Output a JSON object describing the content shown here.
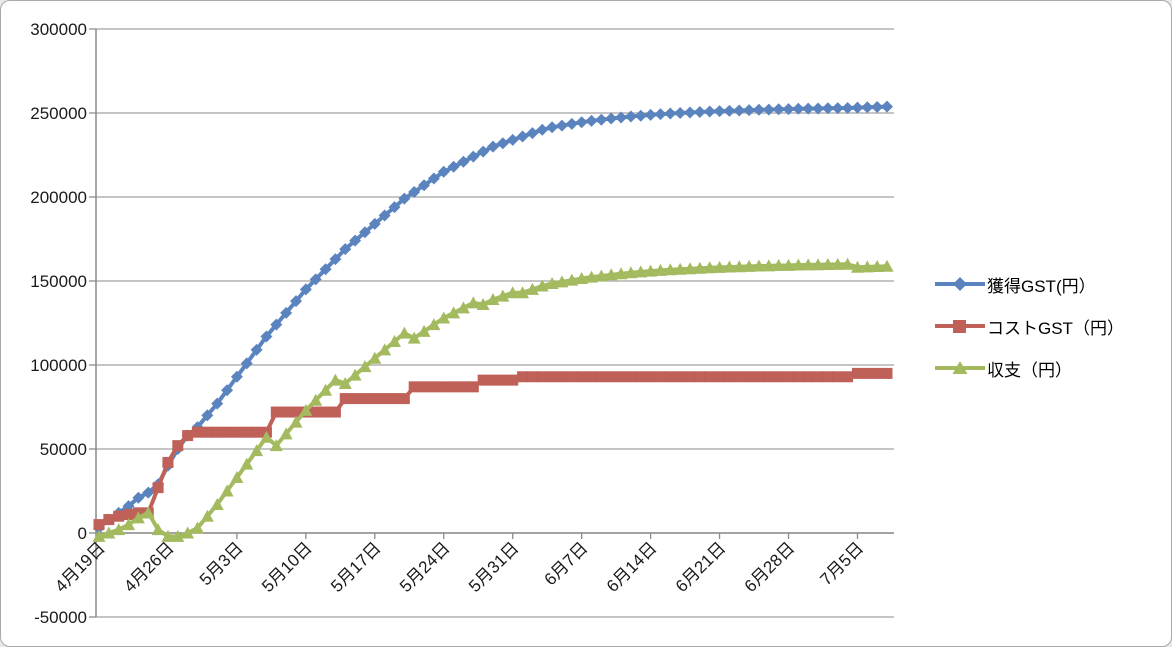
{
  "chart": {
    "title": "",
    "legend": {
      "position": "right",
      "items": [
        {
          "label": "獲得GST(円）",
          "color": "#5b84bf",
          "marker": "diamond"
        },
        {
          "label": "コストGST（円）",
          "color": "#bf6158",
          "marker": "square"
        },
        {
          "label": "収支（円）",
          "color": "#a3ba5f",
          "marker": "triangle"
        }
      ]
    }
  },
  "chart_data": {
    "type": "line",
    "title": "",
    "xlabel": "",
    "ylabel": "",
    "grid": true,
    "legend_position": "right",
    "ylim": [
      -50000,
      300000
    ],
    "y_tick_step": 50000,
    "y_tick_labels": [
      "300000",
      "250000",
      "200000",
      "150000",
      "100000",
      "50000",
      "0",
      "-50000"
    ],
    "x_tick_labels": [
      "4月19日",
      "4月26日",
      "5月3日",
      "5月10日",
      "5月17日",
      "5月24日",
      "5月31日",
      "6月7日",
      "6月14日",
      "6月21日",
      "6月28日",
      "7月5日"
    ],
    "x_tick_indices": [
      0,
      7,
      14,
      21,
      28,
      35,
      42,
      49,
      56,
      63,
      70,
      77
    ],
    "x_unit": "day",
    "n_points": 81,
    "series": [
      {
        "name": "獲得GST(円）",
        "marker": "diamond",
        "color": "#5b84bf",
        "values": [
          3000,
          8000,
          12000,
          16000,
          21000,
          24000,
          29000,
          40000,
          50000,
          58000,
          63000,
          70000,
          77000,
          85000,
          93000,
          101000,
          109000,
          117000,
          124000,
          131000,
          138000,
          145000,
          151000,
          157000,
          163000,
          169000,
          174000,
          179000,
          184000,
          189000,
          194000,
          199000,
          203000,
          207000,
          211000,
          215000,
          218000,
          221000,
          224000,
          227000,
          230000,
          232000,
          234000,
          236000,
          238000,
          240000,
          241500,
          242500,
          243500,
          244500,
          245300,
          246000,
          246700,
          247300,
          247900,
          248400,
          248900,
          249300,
          249700,
          250000,
          250300,
          250600,
          250900,
          251100,
          251300,
          251500,
          251700,
          251900,
          252000,
          252200,
          252300,
          252500,
          252600,
          252700,
          252800,
          252900,
          253000,
          253200,
          253400,
          253600,
          253800
        ]
      },
      {
        "name": "コストGST（円）",
        "marker": "square",
        "color": "#bf6158",
        "values": [
          5000,
          8000,
          10000,
          11000,
          12000,
          12000,
          27000,
          42000,
          52000,
          58000,
          60000,
          60000,
          60000,
          60000,
          60000,
          60000,
          60000,
          60000,
          72000,
          72000,
          72000,
          72000,
          72000,
          72000,
          72000,
          80000,
          80000,
          80000,
          80000,
          80000,
          80000,
          80000,
          87000,
          87000,
          87000,
          87000,
          87000,
          87000,
          87000,
          91000,
          91000,
          91000,
          91000,
          93000,
          93000,
          93000,
          93000,
          93000,
          93000,
          93000,
          93000,
          93000,
          93000,
          93000,
          93000,
          93000,
          93000,
          93000,
          93000,
          93000,
          93000,
          93000,
          93000,
          93000,
          93000,
          93000,
          93000,
          93000,
          93000,
          93000,
          93000,
          93000,
          93000,
          93000,
          93000,
          93000,
          93000,
          95000,
          95000,
          95000,
          95000
        ]
      },
      {
        "name": "収支（円）",
        "marker": "triangle",
        "color": "#a3ba5f",
        "values": [
          -2000,
          0,
          2000,
          5000,
          9000,
          12000,
          2000,
          -2000,
          -2000,
          0,
          3000,
          10000,
          17000,
          25000,
          33000,
          41000,
          49000,
          57000,
          52000,
          59000,
          66000,
          73000,
          79000,
          85000,
          91000,
          89000,
          94000,
          99000,
          104000,
          109000,
          114000,
          119000,
          116000,
          120000,
          124000,
          128000,
          131000,
          134000,
          137000,
          136000,
          139000,
          141000,
          143000,
          143000,
          145000,
          147000,
          148500,
          149500,
          150500,
          151500,
          152300,
          153000,
          153700,
          154300,
          154900,
          155400,
          155900,
          156300,
          156700,
          157000,
          157300,
          157600,
          157900,
          158100,
          158300,
          158500,
          158700,
          158900,
          159000,
          159200,
          159300,
          159500,
          159600,
          159700,
          159800,
          159900,
          160000,
          158200,
          158400,
          158600,
          158800
        ]
      }
    ]
  }
}
